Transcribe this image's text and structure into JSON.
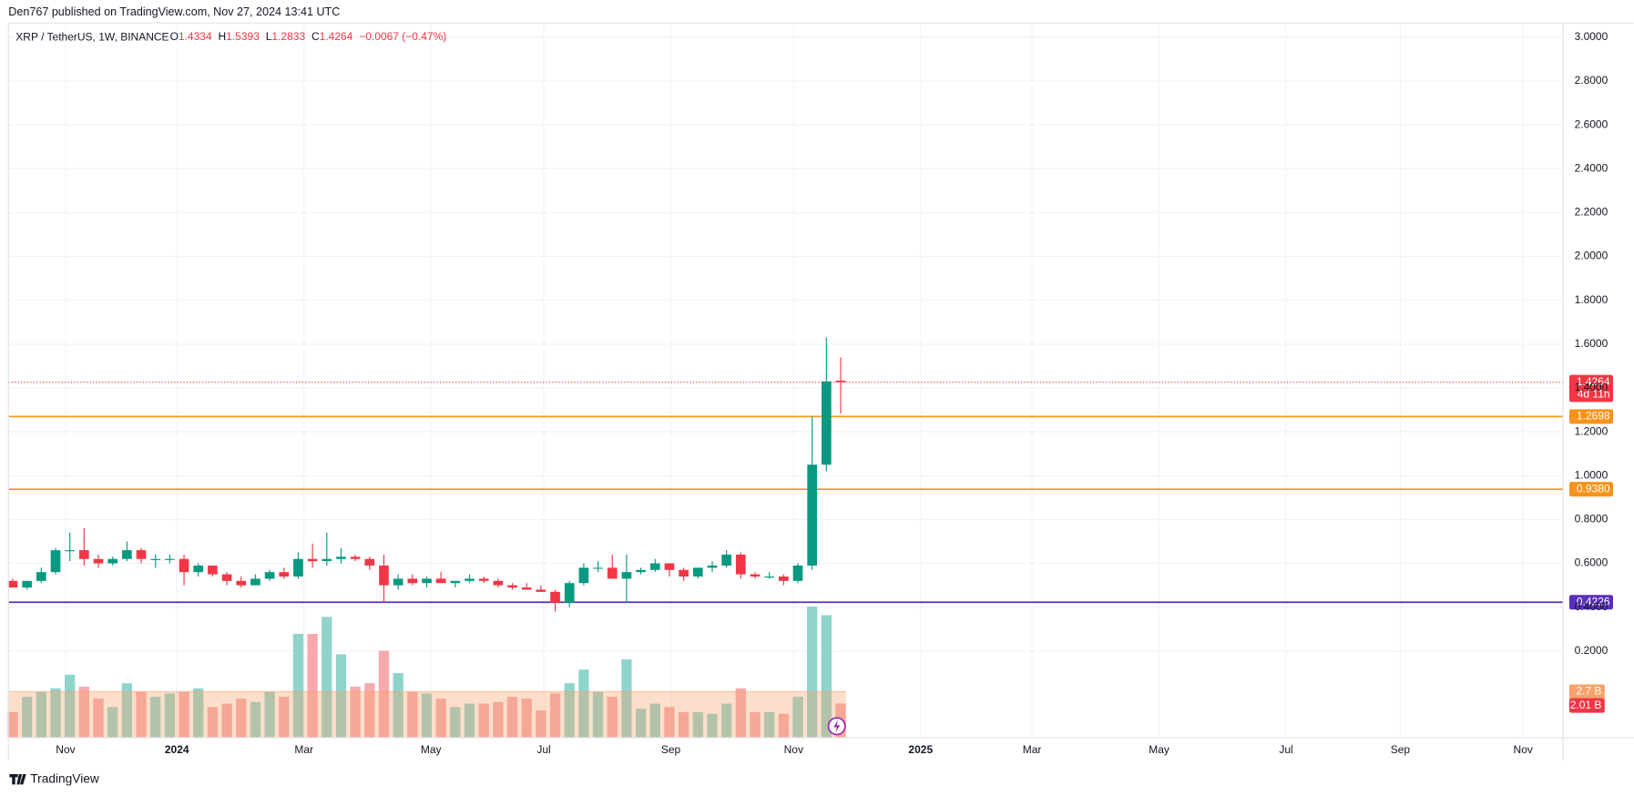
{
  "chart_data": {
    "type": "candlestick",
    "publisher_note": "Den767 published on TradingView.com, Nov 27, 2024 13:41 UTC",
    "symbol": "XRP / TetherUS, 1W, BINANCE",
    "legend_items": [
      {
        "key": "O",
        "value": "1.4334"
      },
      {
        "key": "H",
        "value": "1.5393"
      },
      {
        "key": "L",
        "value": "1.2833"
      },
      {
        "key": "C",
        "value": "1.4264"
      }
    ],
    "change": "−0.0067 (−0.47%)",
    "brand": "TradingView",
    "up_color": "#089981",
    "down_color": "#f23645",
    "xlim": [
      -0.3,
      108.6
    ],
    "xticks": [
      {
        "value": 3.7,
        "label": "Nov"
      },
      {
        "value": 11.5,
        "label": "2024"
      },
      {
        "value": 20.4,
        "label": "Mar"
      },
      {
        "value": 29.3,
        "label": "May"
      },
      {
        "value": 37.2,
        "label": "Jul"
      },
      {
        "value": 46.1,
        "label": "Sep"
      },
      {
        "value": 54.7,
        "label": "Nov"
      },
      {
        "value": 63.6,
        "label": "2025"
      },
      {
        "value": 71.4,
        "label": "Mar"
      },
      {
        "value": 80.3,
        "label": "May"
      },
      {
        "value": 89.2,
        "label": "Jul"
      },
      {
        "value": 97.2,
        "label": "Sep"
      },
      {
        "value": 105.8,
        "label": "Nov"
      }
    ],
    "ylim": [
      -0.195,
      3.065
    ],
    "yticks": [
      {
        "value": 0.2,
        "label": "0.2000"
      },
      {
        "value": 0.4,
        "label": "0.4000"
      },
      {
        "value": 0.6,
        "label": "0.6000"
      },
      {
        "value": 0.8,
        "label": "0.8000"
      },
      {
        "value": 1.0,
        "label": "1.0000"
      },
      {
        "value": 1.2,
        "label": "1.2000"
      },
      {
        "value": 1.4,
        "label": "1.4000"
      },
      {
        "value": 1.6,
        "label": "1.6000"
      },
      {
        "value": 1.8,
        "label": "1.8000"
      },
      {
        "value": 2.0,
        "label": "2.0000"
      },
      {
        "value": 2.2,
        "label": "2.2000"
      },
      {
        "value": 2.4,
        "label": "2.4000"
      },
      {
        "value": 2.6,
        "label": "2.6000"
      },
      {
        "value": 2.8,
        "label": "2.8000"
      },
      {
        "value": 3.0,
        "label": "3.0000"
      }
    ],
    "grid": true,
    "open": [
      0.52,
      0.49,
      0.52,
      0.56,
      0.66,
      0.66,
      0.62,
      0.6,
      0.62,
      0.66,
      0.62,
      0.62,
      0.62,
      0.56,
      0.59,
      0.55,
      0.52,
      0.5,
      0.53,
      0.56,
      0.54,
      0.62,
      0.61,
      0.62,
      0.63,
      0.62,
      0.59,
      0.5,
      0.53,
      0.51,
      0.53,
      0.51,
      0.52,
      0.53,
      0.52,
      0.5,
      0.49,
      0.48,
      0.47,
      0.42,
      0.51,
      0.58,
      0.58,
      0.53,
      0.56,
      0.57,
      0.6,
      0.57,
      0.54,
      0.58,
      0.59,
      0.64,
      0.55,
      0.54,
      0.54,
      0.52,
      0.59,
      1.05,
      1.4334
    ],
    "high": [
      0.53,
      0.52,
      0.58,
      0.67,
      0.74,
      0.76,
      0.64,
      0.63,
      0.7,
      0.67,
      0.64,
      0.64,
      0.64,
      0.6,
      0.59,
      0.56,
      0.54,
      0.55,
      0.57,
      0.58,
      0.65,
      0.69,
      0.74,
      0.67,
      0.64,
      0.63,
      0.64,
      0.55,
      0.55,
      0.54,
      0.56,
      0.52,
      0.55,
      0.54,
      0.53,
      0.51,
      0.51,
      0.5,
      0.48,
      0.52,
      0.6,
      0.61,
      0.64,
      0.64,
      0.58,
      0.62,
      0.6,
      0.58,
      0.58,
      0.61,
      0.66,
      0.65,
      0.56,
      0.56,
      0.55,
      0.6,
      1.27,
      1.63,
      1.5393
    ],
    "low": [
      0.49,
      0.48,
      0.51,
      0.55,
      0.61,
      0.59,
      0.58,
      0.59,
      0.61,
      0.6,
      0.58,
      0.6,
      0.5,
      0.54,
      0.54,
      0.5,
      0.49,
      0.5,
      0.52,
      0.53,
      0.53,
      0.58,
      0.59,
      0.6,
      0.61,
      0.57,
      0.42,
      0.48,
      0.5,
      0.49,
      0.51,
      0.49,
      0.51,
      0.51,
      0.49,
      0.48,
      0.48,
      0.47,
      0.38,
      0.4,
      0.5,
      0.56,
      0.53,
      0.42,
      0.55,
      0.56,
      0.54,
      0.52,
      0.53,
      0.56,
      0.58,
      0.53,
      0.53,
      0.53,
      0.5,
      0.51,
      0.57,
      1.02,
      1.2833
    ],
    "close": [
      0.49,
      0.52,
      0.56,
      0.66,
      0.66,
      0.62,
      0.6,
      0.62,
      0.66,
      0.62,
      0.62,
      0.62,
      0.56,
      0.59,
      0.55,
      0.52,
      0.5,
      0.53,
      0.56,
      0.54,
      0.62,
      0.61,
      0.62,
      0.63,
      0.62,
      0.59,
      0.5,
      0.53,
      0.51,
      0.53,
      0.51,
      0.52,
      0.53,
      0.52,
      0.5,
      0.49,
      0.48,
      0.47,
      0.42,
      0.51,
      0.58,
      0.58,
      0.53,
      0.56,
      0.57,
      0.6,
      0.57,
      0.54,
      0.58,
      0.59,
      0.64,
      0.55,
      0.54,
      0.54,
      0.52,
      0.59,
      1.05,
      1.43,
      1.4264
    ],
    "volume": [
      1.5,
      2.4,
      2.7,
      2.9,
      3.7,
      3.0,
      2.3,
      1.8,
      3.2,
      2.7,
      2.4,
      2.6,
      2.7,
      2.9,
      1.8,
      2.0,
      2.3,
      2.1,
      2.7,
      2.4,
      6.1,
      6.1,
      7.1,
      4.9,
      3.0,
      3.2,
      5.1,
      3.8,
      2.7,
      2.6,
      2.3,
      1.8,
      2.0,
      2.0,
      2.1,
      2.4,
      2.3,
      1.6,
      2.6,
      3.2,
      4.0,
      2.7,
      2.4,
      4.6,
      1.7,
      2.0,
      1.8,
      1.5,
      1.5,
      1.4,
      2.0,
      2.9,
      1.5,
      1.5,
      1.4,
      2.4,
      7.7,
      7.2,
      2.01
    ],
    "volume_lim": [
      0,
      42
    ],
    "volume_up_color": "#8fd4cb",
    "volume_down_color": "#f7a9ad",
    "volume_ma": {
      "value": 2.7,
      "label": "2.7 B",
      "color": "#f7a26a"
    },
    "volume_last": {
      "value": 2.01,
      "label": "2.01 B"
    },
    "price_line": {
      "value": 1.4264,
      "countdown": "4d 11h",
      "color": "#f23645"
    },
    "levels": [
      {
        "value": 1.2698,
        "color": "#f7931a"
      },
      {
        "value": {
          "value": 0.938,
          "label": "0.9380"
        },
        "color": "#f7931a"
      },
      {
        "value": 0.4226,
        "color": "#5b2fbf"
      }
    ]
  }
}
